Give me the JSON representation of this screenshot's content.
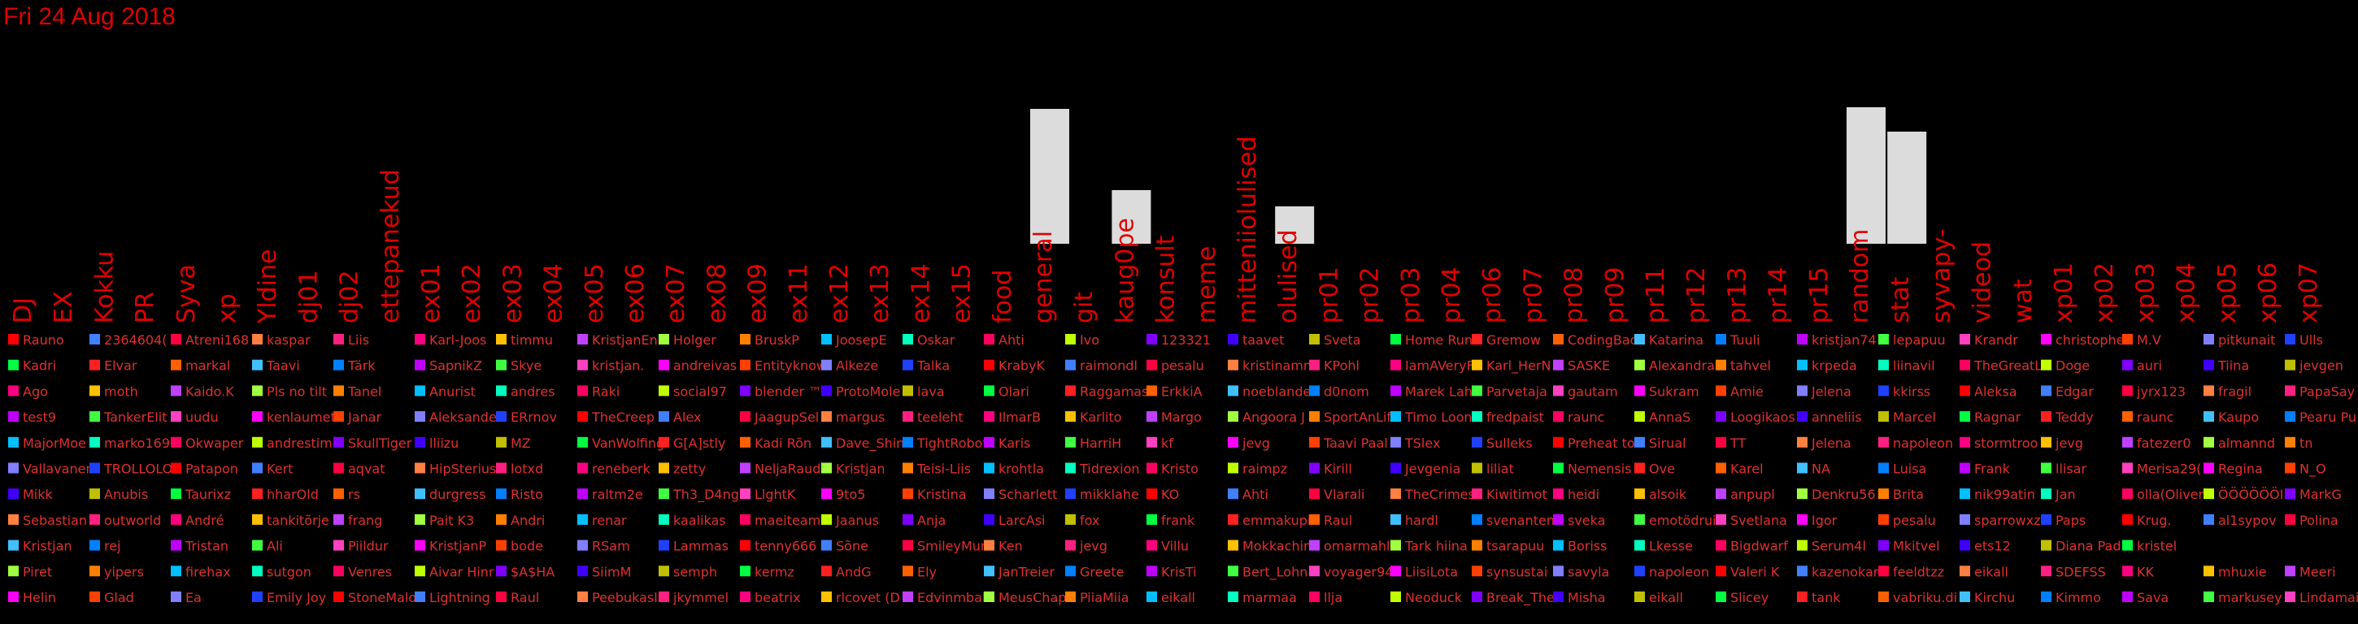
{
  "date": "Fri 24 Aug 2018",
  "chart_data": {
    "type": "bar",
    "categories": [
      "DJ",
      "EX",
      "Kokku",
      "PR",
      "Syva",
      "xp",
      "Yldine",
      "dj01",
      "dj02",
      "ettepanekud",
      "ex01",
      "ex02",
      "ex03",
      "ex04",
      "ex05",
      "ex06",
      "ex07",
      "ex08",
      "ex09",
      "ex11",
      "ex12",
      "ex13",
      "ex14",
      "ex15",
      "food",
      "general",
      "git",
      "kaug0pe",
      "konsult",
      "meme",
      "mitteniiolulised",
      "olulised",
      "pr01",
      "pr02",
      "pr03",
      "pr04",
      "pr06",
      "pr07",
      "pr08",
      "pr09",
      "pr11",
      "pr12",
      "pr13",
      "pr14",
      "pr15",
      "random",
      "stat",
      "syvapy-",
      "videod",
      "wat",
      "xp01",
      "xp02",
      "xp03",
      "xp04",
      "xp05",
      "xp06",
      "xp07"
    ],
    "values": [
      0,
      0,
      0,
      0,
      0,
      0,
      0,
      0,
      0,
      0,
      0,
      0,
      0,
      0,
      0,
      0,
      0,
      0,
      0,
      0,
      0,
      0,
      0,
      0,
      0,
      166,
      0,
      66,
      0,
      0,
      0,
      46,
      0,
      0,
      0,
      0,
      0,
      0,
      0,
      0,
      0,
      0,
      0,
      0,
      0,
      168,
      138,
      0,
      0,
      0,
      0,
      0,
      0,
      0,
      0,
      0,
      0
    ],
    "y_max": 200,
    "legend": [
      [
        "Rauno",
        "2364604(",
        "Atreni168",
        "kaspar",
        "Liis",
        "Karl-Joos",
        "timmu",
        "KristjanEn",
        "Holger",
        "BruskP",
        "JoosepE",
        "Oskar",
        "Ahti",
        "Ivo",
        "123321",
        "taavet",
        "Sveta",
        "Home Run",
        "Gremow",
        "CodingBad",
        "Katarina",
        "Tuuli",
        "kristjan74",
        "lepapuu",
        "Krandr",
        "christophe",
        "M.V",
        "pitkunait",
        "Ulls"
      ],
      [
        "Kadri",
        "Elvar",
        "markal",
        "Taavi",
        "Tärk",
        "SapnikZ",
        "Skye",
        "kristjan.",
        "andreivas",
        "Entityknow",
        "Alkeze",
        "Talka",
        "KrabyK",
        "raimondl",
        "pesalu",
        "kristinamm",
        "KPohl",
        "IamAVeryF",
        "Karl_HerN",
        "SASKE",
        "Alexandra",
        "tahvel",
        "krpeda",
        "liinavil",
        "TheGreatL",
        "Doge",
        "auri",
        "Tiina",
        "jevgen"
      ],
      [
        "Ago",
        "moth",
        "Kaido.K",
        "Pls no tilt",
        "Tanel",
        "Anurist",
        "andres",
        "Raki",
        "social97",
        "blender ™",
        "ProtoMole",
        "lava",
        "Olari",
        "Raggamas",
        "ErkkiA",
        "noeblande",
        "d0nom",
        "Marek Lah",
        "Parvetaja",
        "gautam",
        "Sukram",
        "Amie",
        "Jelena",
        "kkirss",
        "Aleksa",
        "Edgar",
        "jyrx123",
        "fragil",
        "PapaSay"
      ],
      [
        "test9",
        "TankerElit",
        "uudu",
        "kenlaumet",
        "Janar",
        "Aleksande",
        "ERrnov",
        "TheCreep",
        "Alex",
        "JaagupSel",
        "margus",
        "teeleht",
        "IlmarB",
        "Karlito",
        "Margo",
        "Angoora J",
        "SportAnLif",
        "Timo Loon",
        "fredpaist",
        "raunc",
        "AnnaS",
        "Loogikaos",
        "anneliis",
        "Marcel",
        "Ragnar",
        "Teddy",
        "raunc",
        "Kaupo",
        "Pearu Pu"
      ],
      [
        "MajorMoe",
        "marko169",
        "Okwaper",
        "andrestim",
        "SkullTiger",
        "lliizu",
        "MZ",
        "VanWolfing",
        "G[A]stly",
        "Kadi Rõn",
        "Dave_Shin",
        "TightRobot",
        "Karis",
        "HarriH",
        "kf",
        "jevg",
        "Taavi Paal",
        "TSlex",
        "Sulleks",
        "Preheat to",
        "Sirual",
        "TT",
        "Jelena",
        "napoleon",
        "stormtroo",
        "jevg",
        "fatezer0",
        "almannd",
        "tn"
      ],
      [
        "Vallavanem",
        "TROLLOLOL",
        "Patapon",
        "Kert",
        "aqvat",
        "HipSterius",
        "lotxd",
        "reneberk",
        "zetty",
        "NeljaRaud",
        "Kristjan",
        "Teisi-Liis",
        "krohtla",
        "Tidrexion",
        "Kristo",
        "raimpz",
        "Kirill",
        "Jevgenia",
        "liliat",
        "Nemensis",
        "Ove",
        "Karel",
        "NA",
        "Luisa",
        "Frank",
        "llisar",
        "Merisa29(",
        "Regina",
        "N_O"
      ],
      [
        "Mikk",
        "Anubis",
        "Taurixz",
        "hharOld",
        "rs",
        "durgress",
        "Risto",
        "raltm2e",
        "Th3_D4ng3",
        "LlghtK",
        "9to5",
        "Kristina",
        "Scharlett",
        "mikklahe",
        "KO",
        "Ahti",
        "Vlarali",
        "TheCrimes",
        "Kiwitimot",
        "heidi",
        "alsoik",
        "anpupl",
        "Denkru56",
        "Brita",
        "nik99atin",
        "Jan",
        "olla(Oliver",
        "ÖÖÖÖÖÖI",
        "MarkG"
      ],
      [
        "Sebastian",
        "outworld",
        "André",
        "tankitõrje",
        "frang",
        "Pait K3",
        "Andri",
        "renar",
        "kaalikas",
        "maeiteami",
        "Jaanus",
        "Anja",
        "LarcAsi",
        "fox",
        "frank",
        "emmakupi",
        "Raul",
        "hardl",
        "svenanten",
        "sveka",
        "emotödrui",
        "Svetlana",
        "Igor",
        "pesalu",
        "sparrowxz",
        "Paps",
        "Krug.",
        "al1sypov",
        "Polina"
      ],
      [
        "Kristjan",
        "rej",
        "Tristan",
        "Ali",
        "Piildur",
        "KristjanP",
        "bode",
        "RSam",
        "Lammas",
        "tenny666",
        "Sõne",
        "SmileyMur",
        "Ken",
        "jevg",
        "Villu",
        "Mokkachin",
        "omarmahl",
        "Tark hiina",
        "tsarapuu",
        "Boriss",
        "Lkesse",
        "Bigdwarf",
        "Serum4l",
        "Mkitvel",
        "ets12",
        "Diana Pad",
        "kristel"
      ],
      [
        "Piret",
        "yipers",
        "firehax",
        "sutgon",
        "Venres",
        "Aivar Hinr",
        "$A$HA",
        "SiimM",
        "semph",
        "kermz",
        "AndG",
        "Ely",
        "JanTreier",
        "Greete",
        "KrisTi",
        "Bert_Lohn",
        "voyager94",
        "LiisiLota",
        "synsustai",
        "savyla",
        "napoleon",
        "Valeri K",
        "kazenokan",
        "feeldtzz",
        "eikall",
        "SDEFSS",
        "KK",
        "mhuxie",
        "Meeri"
      ],
      [
        "Helin",
        "Glad",
        "Ea",
        "Emily Joy",
        "StoneMalo",
        "Lightning",
        "Raul",
        "Peebukasl",
        "jkymmel",
        "beatrix",
        "rlcovet (D",
        "Edvinmbal",
        "MeusChap",
        "PiiaMiia",
        "eikall",
        "marmaa",
        "llja",
        "Neoduck",
        "Break_The",
        "Misha",
        "eikall",
        "Slicey",
        "tank",
        "vabriku.di",
        "Kirchu",
        "Kimmo",
        "Sava",
        "markusey",
        "Lindamai"
      ]
    ]
  }
}
